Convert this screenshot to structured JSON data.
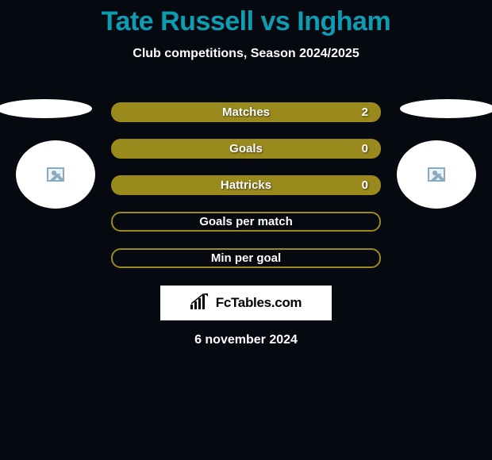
{
  "title": "Tate Russell vs Ingham",
  "subtitle": "Club competitions, Season 2024/2025",
  "date": "6 november 2024",
  "brand": "FcTables.com",
  "bar_color": "#9a8a1e",
  "background_color": "#070910",
  "title_color": "#0d9db3",
  "text_color": "#ffffff",
  "stats": [
    {
      "label": "Matches",
      "value": "2",
      "filled": true
    },
    {
      "label": "Goals",
      "value": "0",
      "filled": true
    },
    {
      "label": "Hattricks",
      "value": "0",
      "filled": true
    },
    {
      "label": "Goals per match",
      "value": "",
      "filled": false
    },
    {
      "label": "Min per goal",
      "value": "",
      "filled": false
    }
  ]
}
